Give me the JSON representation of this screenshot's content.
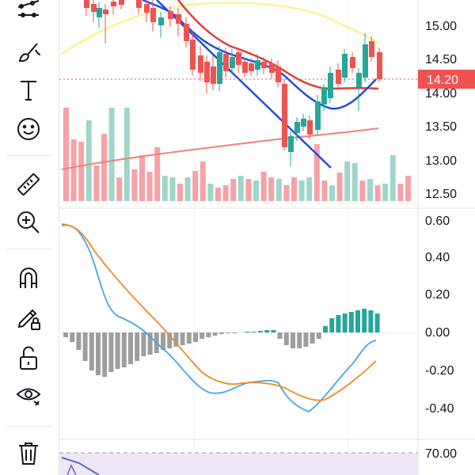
{
  "toolbar": {
    "items": [
      {
        "name": "trend-tools-icon"
      },
      {
        "name": "brush-icon"
      },
      {
        "name": "text-icon"
      },
      {
        "name": "emoji-icon"
      },
      {
        "name": "ruler-icon"
      },
      {
        "name": "zoom-in-icon"
      },
      {
        "name": "magnet-icon"
      },
      {
        "name": "lock-drawing-icon"
      },
      {
        "name": "unlock-icon"
      },
      {
        "name": "eye-icon"
      },
      {
        "name": "trash-icon"
      }
    ]
  },
  "price_pane": {
    "axis_labels": [
      "15.00",
      "14.50",
      "14.00",
      "13.50",
      "13.00",
      "12.50"
    ],
    "current_price": "14.20"
  },
  "macd_pane": {
    "axis_labels": [
      "0.60",
      "0.40",
      "0.20",
      "0.00",
      "-0.20",
      "-0.40"
    ]
  },
  "rsi_pane": {
    "axis_labels": [
      "70.00"
    ]
  },
  "colors": {
    "up": "#26a69a",
    "down": "#ef5350",
    "volume_up": "#9fd6c9",
    "volume_down": "#f5a3a8",
    "ma_red": "#e53935",
    "ma_blue": "#1e4fe0",
    "ma_yellow": "#fff176",
    "ma_pink": "#f08080",
    "macd_line": "#4aa3e6",
    "signal_line": "#f08a24",
    "hist_neg": "#9e9e9e",
    "hist_pos": "#26a69a"
  }
}
